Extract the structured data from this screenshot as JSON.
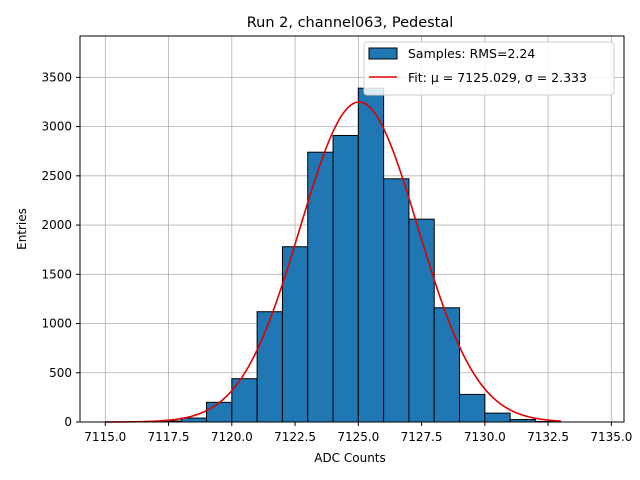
{
  "chart_data": {
    "type": "bar",
    "title": "Run 2, channel063, Pedestal",
    "xlabel": "ADC Counts",
    "ylabel": "Entries",
    "xlim": [
      7114.0,
      7135.5
    ],
    "ylim": [
      0,
      3920
    ],
    "xticks": [
      7115.0,
      7117.5,
      7120.0,
      7122.5,
      7125.0,
      7127.5,
      7130.0,
      7132.5,
      7135.0
    ],
    "xtick_labels": [
      "7115.0",
      "7117.5",
      "7120.0",
      "7122.5",
      "7125.0",
      "7127.5",
      "7130.0",
      "7132.5",
      "7135.0"
    ],
    "yticks": [
      0,
      500,
      1000,
      1500,
      2000,
      2500,
      3000,
      3500
    ],
    "ytick_labels": [
      "0",
      "500",
      "1000",
      "1500",
      "2000",
      "2500",
      "3000",
      "3500"
    ],
    "grid": true,
    "legend_position": "upper right",
    "colors": {
      "bars": "#1f77b4",
      "bar_edge": "#000000",
      "fit": "#e00000",
      "grid": "#b0b0b0"
    },
    "histogram": {
      "name": "Samples: RMS=2.24",
      "bins": [
        {
          "x0": 7115,
          "x1": 7116,
          "count": 0
        },
        {
          "x0": 7116,
          "x1": 7117,
          "count": 0
        },
        {
          "x0": 7117,
          "x1": 7118,
          "count": 10
        },
        {
          "x0": 7118,
          "x1": 7119,
          "count": 40
        },
        {
          "x0": 7119,
          "x1": 7120,
          "count": 200
        },
        {
          "x0": 7120,
          "x1": 7121,
          "count": 440
        },
        {
          "x0": 7121,
          "x1": 7122,
          "count": 1120
        },
        {
          "x0": 7122,
          "x1": 7123,
          "count": 1780
        },
        {
          "x0": 7123,
          "x1": 7124,
          "count": 2740
        },
        {
          "x0": 7124,
          "x1": 7125,
          "count": 2910
        },
        {
          "x0": 7125,
          "x1": 7126,
          "count": 3390
        },
        {
          "x0": 7126,
          "x1": 7127,
          "count": 2470
        },
        {
          "x0": 7127,
          "x1": 7128,
          "count": 2060
        },
        {
          "x0": 7128,
          "x1": 7129,
          "count": 1160
        },
        {
          "x0": 7129,
          "x1": 7130,
          "count": 280
        },
        {
          "x0": 7130,
          "x1": 7131,
          "count": 90
        },
        {
          "x0": 7131,
          "x1": 7132,
          "count": 25
        },
        {
          "x0": 7132,
          "x1": 7133,
          "count": 5
        }
      ]
    },
    "fit": {
      "name": "Fit: μ = 7125.029, σ = 2.333",
      "mu": 7125.029,
      "sigma": 2.333,
      "amplitude": 3250,
      "x_range": [
        7115,
        7133
      ]
    }
  }
}
